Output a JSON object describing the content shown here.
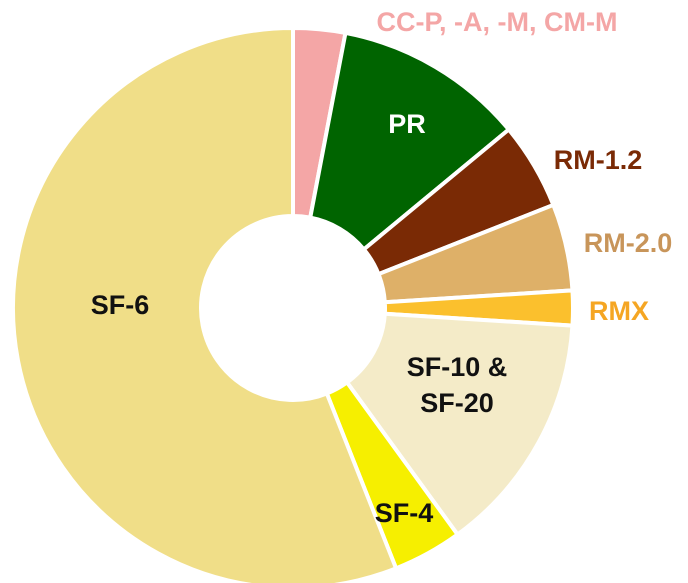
{
  "chart_data": {
    "type": "pie",
    "categories": [
      "CC-P, -A, -M, CM-M",
      "PR",
      "RM-1.2",
      "RM-2.0",
      "RMX",
      "SF-10 & SF-20",
      "SF-4",
      "SF-6"
    ],
    "values": [
      3,
      11,
      5,
      5,
      2,
      14,
      4,
      56
    ],
    "colors": [
      "#f4a6a6",
      "#006400",
      "#7a2a05",
      "#deb068",
      "#fbc02d",
      "#f4ebc8",
      "#f6ef00",
      "#f0de88"
    ]
  }
}
